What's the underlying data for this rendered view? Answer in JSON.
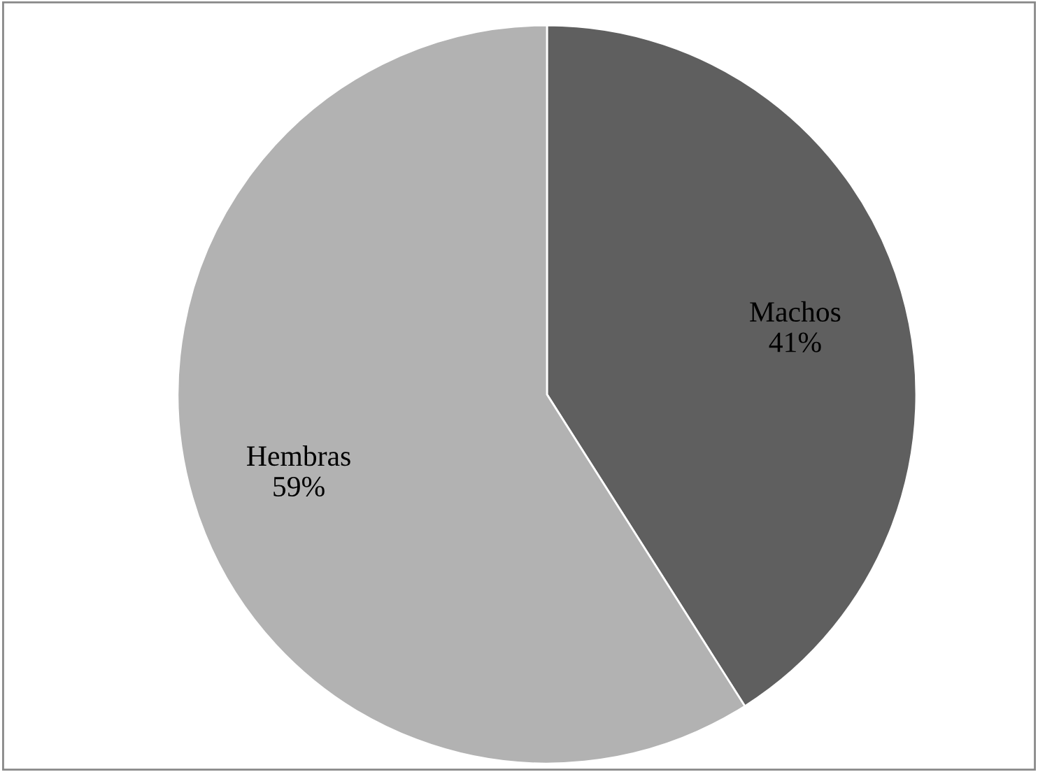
{
  "chart_data": {
    "type": "pie",
    "categories": [
      "Machos",
      "Hembras"
    ],
    "values": [
      41,
      59
    ],
    "colors": [
      "#5f5f5f",
      "#b2b2b2"
    ],
    "value_labels": [
      "41%",
      "59%"
    ],
    "legend": false
  }
}
